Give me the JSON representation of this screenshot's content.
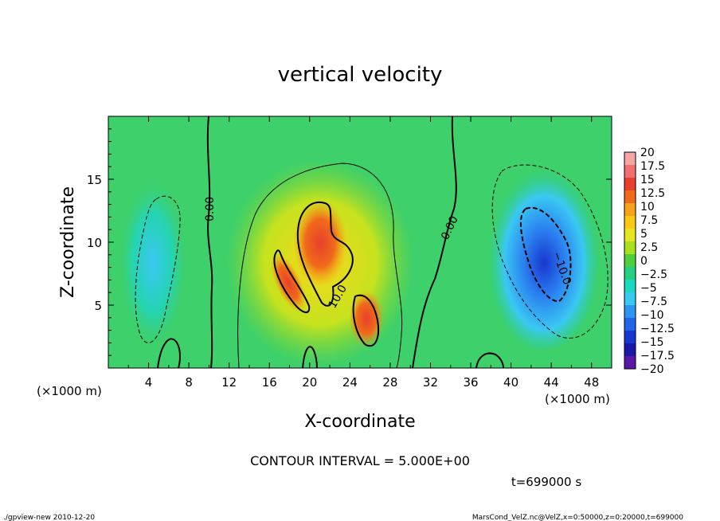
{
  "chart_data": {
    "type": "heatmap",
    "title": "vertical velocity",
    "xlabel": "X-coordinate",
    "ylabel": "Z-coordinate",
    "x_unit_left": "(×1000 m)",
    "x_unit_right": "(×1000 m)",
    "xlim": [
      0,
      50
    ],
    "ylim": [
      0,
      20
    ],
    "x_ticks": [
      4,
      8,
      12,
      16,
      20,
      24,
      28,
      32,
      36,
      40,
      44,
      48
    ],
    "y_ticks": [
      5,
      10,
      15
    ],
    "colorbar": {
      "labels": [
        "20",
        "17.5",
        "15",
        "12.5",
        "10",
        "7.5",
        "5",
        "2.5",
        "0",
        "−2.5",
        "−5",
        "−7.5",
        "−10",
        "−12.5",
        "−15",
        "−17.5",
        "−20"
      ],
      "colors": [
        "#f4a6a6",
        "#f07070",
        "#e8402c",
        "#f06a1a",
        "#f7a01a",
        "#fbc814",
        "#e6e620",
        "#a8e21e",
        "#4ed03c",
        "#26d080",
        "#1ad8c2",
        "#3ac8f2",
        "#2a96f2",
        "#2064e8",
        "#1836d0",
        "#1a18a8",
        "#5a16a6"
      ]
    },
    "contour_labels": [
      "0.00",
      "0.00",
      "10.0",
      "−10.0"
    ],
    "field_features": [
      {
        "kind": "updraft",
        "x": 21,
        "z": 10,
        "peak": 13
      },
      {
        "kind": "updraft",
        "x": 26,
        "z": 4.5,
        "peak": 12
      },
      {
        "kind": "downdraft",
        "x": 43,
        "z": 9,
        "peak": -11
      },
      {
        "kind": "weak-updraft",
        "x": 4.5,
        "z": 8,
        "peak": -5
      }
    ],
    "contour_interval": "CONTOUR INTERVAL = 5.000E+00",
    "time": "t=699000 s"
  },
  "footer": {
    "left": "./gpview-new  2010-12-20",
    "right": "MarsCond_VelZ.nc@VelZ,x=0:50000,z=0:20000,t=699000"
  }
}
